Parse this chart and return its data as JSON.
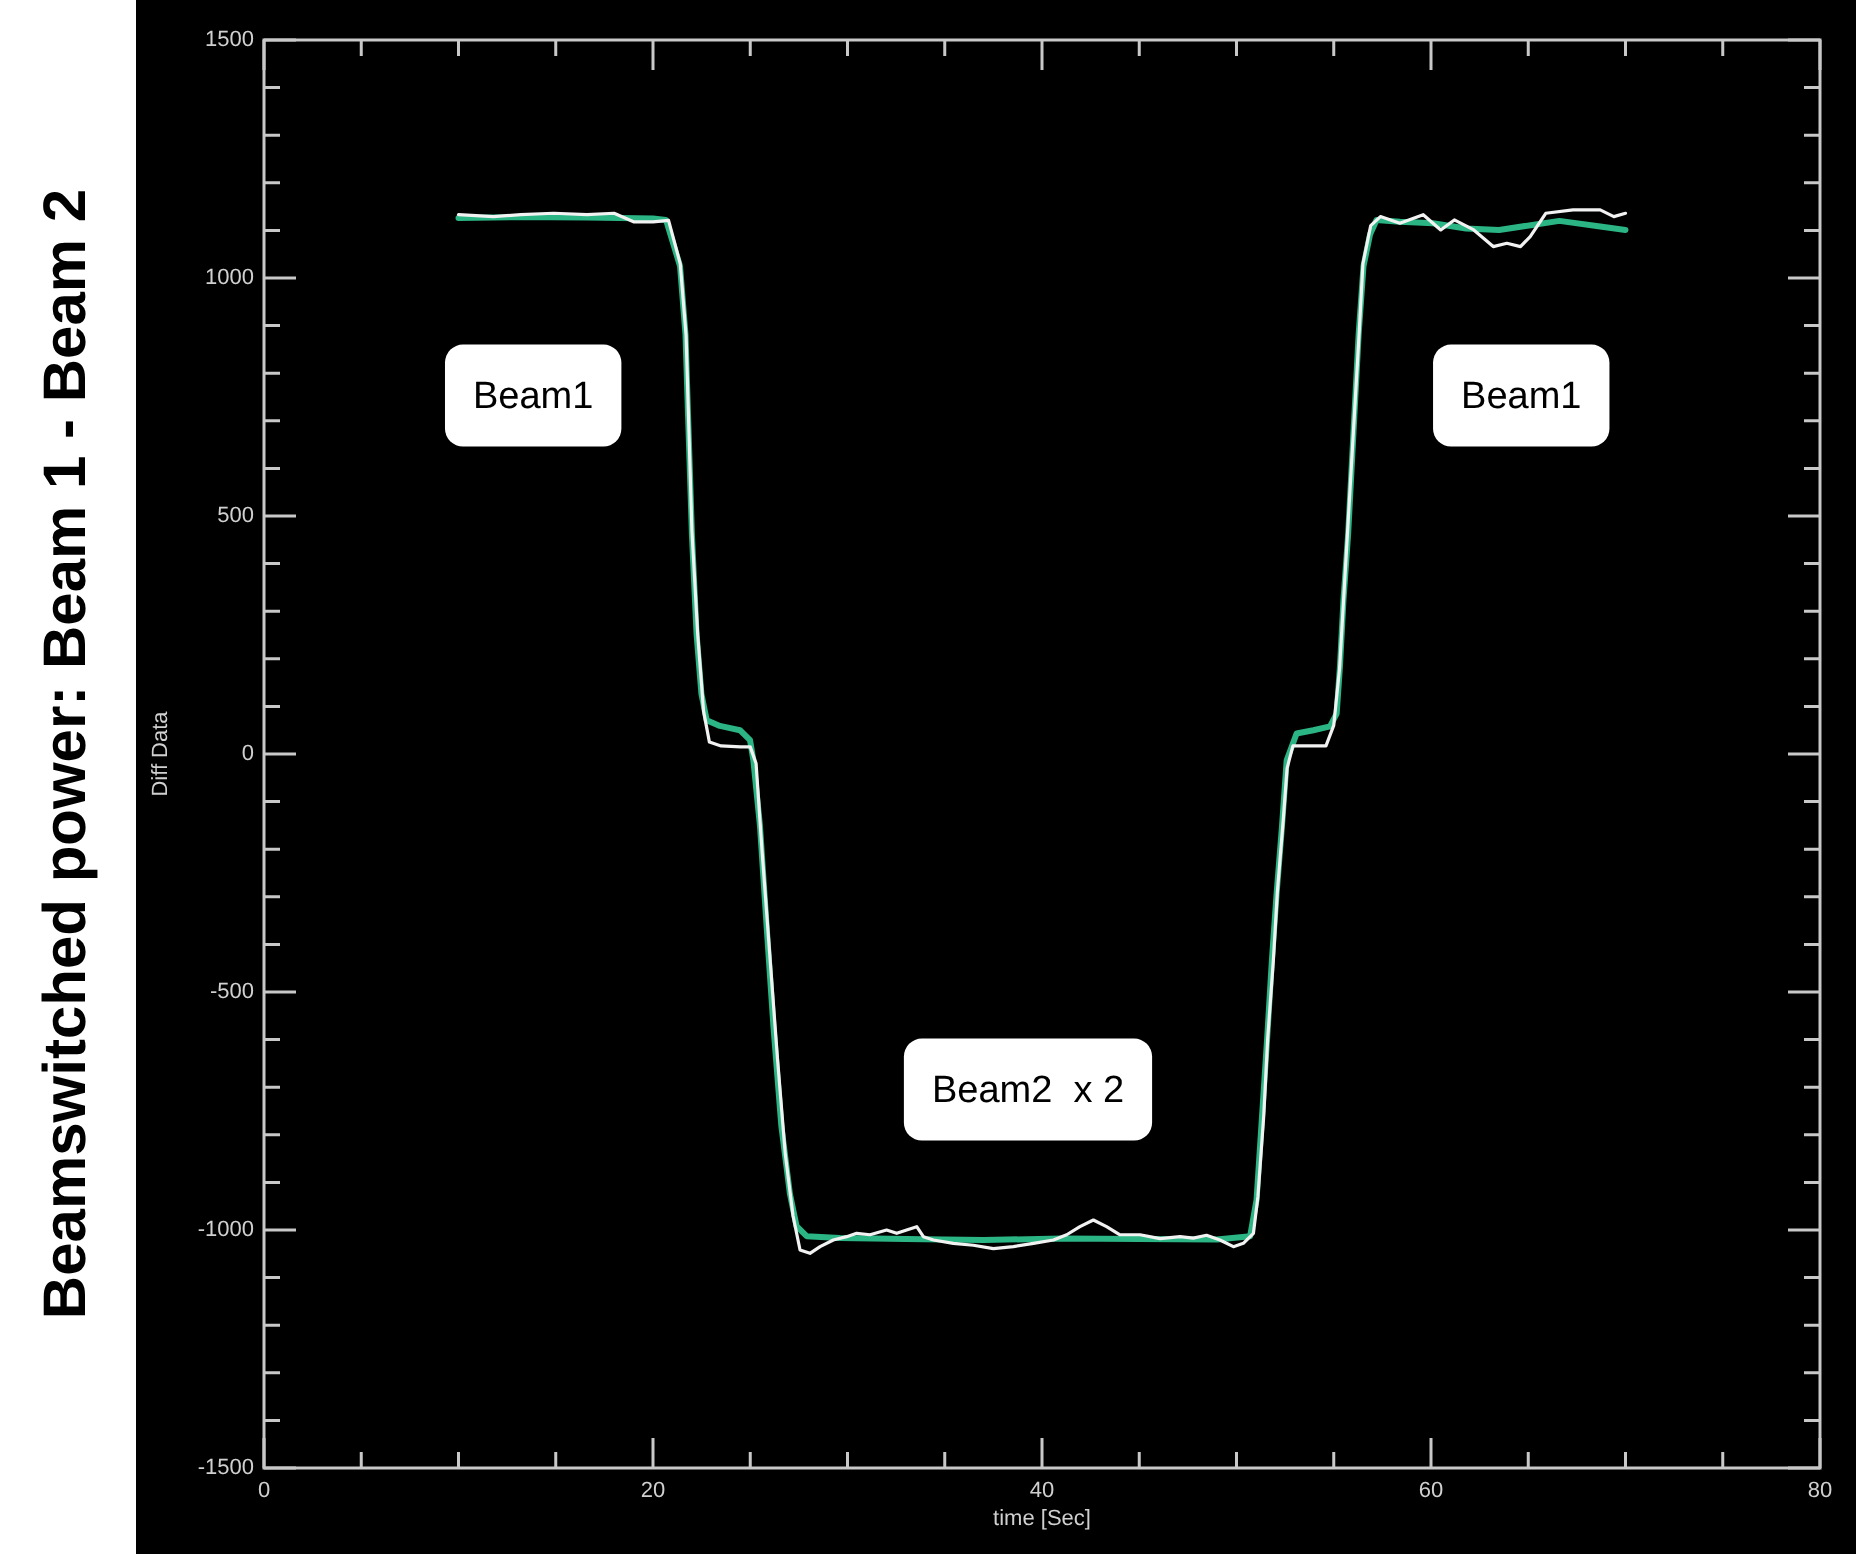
{
  "chart_data": {
    "type": "line",
    "title": "Beamswitched power: Beam 1 - Beam 2",
    "xlabel": "time [Sec]",
    "ylabel": "Diff Data",
    "series": [
      {
        "color": "#f2f2f2",
        "x": [
          10,
          11.8,
          13.2,
          14.9,
          16.6,
          18.0,
          19.0,
          20.0,
          20.8,
          21.4,
          21.7,
          22.0,
          22.3,
          22.6,
          22.9,
          23.5,
          24.5,
          25.0,
          25.3,
          25.6,
          26.0,
          26.4,
          26.8,
          27.2,
          27.56,
          28.07,
          28.59,
          29.27,
          29.96,
          30.47,
          31.16,
          32.01,
          32.53,
          33.04,
          33.56,
          33.9,
          34.42,
          35.44,
          36.47,
          37.5,
          38.53,
          39.56,
          40.59,
          41.27,
          41.95,
          42.64,
          43.32,
          44.01,
          45.04,
          46.07,
          47.1,
          47.78,
          48.46,
          49.15,
          49.84,
          50.35,
          50.87,
          51.1,
          51.4,
          51.6,
          51.9,
          52.1,
          52.4,
          52.6,
          52.9,
          53.8,
          54.6,
          55.0,
          55.3,
          55.5,
          55.7,
          56.0,
          56.3,
          56.5,
          56.9,
          57.4,
          58.4,
          59.6,
          60.5,
          61.2,
          62.2,
          63.2,
          63.9,
          64.6,
          65.1,
          65.9,
          67.3,
          68.7,
          69.4,
          70
        ],
        "values": [
          1133,
          1129,
          1133,
          1136,
          1133,
          1136,
          1118,
          1118,
          1121,
          1030,
          880,
          470,
          250,
          90,
          25,
          17,
          15,
          15,
          -20,
          -200,
          -420,
          -640,
          -840,
          -970,
          -1042,
          -1049,
          -1035,
          -1021,
          -1014,
          -1007,
          -1010,
          -1000,
          -1007,
          -1000,
          -993,
          -1014,
          -1021,
          -1028,
          -1032,
          -1039,
          -1035,
          -1028,
          -1021,
          -1010,
          -993,
          -979,
          -993,
          -1010,
          -1010,
          -1018,
          -1014,
          -1017,
          -1011,
          -1021,
          -1035,
          -1028,
          -1007,
          -930,
          -760,
          -600,
          -430,
          -290,
          -140,
          -30,
          17,
          17,
          17,
          60,
          180,
          320,
          460,
          670,
          880,
          1030,
          1110,
          1129,
          1115,
          1133,
          1101,
          1122,
          1101,
          1066,
          1073,
          1066,
          1087,
          1136,
          1143,
          1143,
          1129,
          1136
        ]
      },
      {
        "color": "#2bb585",
        "x": [
          10,
          13,
          16.6,
          20,
          20.67,
          21.39,
          21.67,
          21.8,
          22.0,
          22.24,
          22.49,
          22.76,
          23.44,
          24.47,
          24.99,
          25.16,
          25.5,
          25.84,
          26.19,
          26.6,
          27.04,
          27.38,
          27.9,
          29.6,
          33,
          37,
          41,
          45,
          49,
          50.7,
          51.03,
          51.3,
          51.57,
          51.82,
          52.06,
          52.34,
          52.58,
          53.09,
          53.95,
          54.81,
          55.15,
          55.32,
          55.5,
          55.74,
          56.01,
          56.28,
          56.53,
          56.87,
          57.2,
          58.4,
          60.1,
          61.8,
          63.5,
          65.3,
          66.6,
          68.7,
          70
        ],
        "values": [
          1126,
          1128,
          1127,
          1125,
          1122,
          1025,
          882,
          714,
          462,
          252,
          126,
          71,
          59,
          50,
          29,
          -13,
          -151,
          -361,
          -571,
          -782,
          -924,
          -992,
          -1013,
          -1017,
          -1019,
          -1021,
          -1018,
          -1019,
          -1020,
          -1013,
          -937,
          -769,
          -601,
          -433,
          -294,
          -151,
          -13,
          43,
          50,
          58,
          85,
          185,
          324,
          462,
          672,
          882,
          1025,
          1092,
          1122,
          1118,
          1115,
          1104,
          1101,
          1112,
          1120,
          1108,
          1101
        ]
      }
    ],
    "xlim": [
      0,
      80
    ],
    "xticks": [
      0,
      {
        "value": 5,
        "label": null
      },
      {
        "value": 10,
        "label": null
      },
      {
        "value": 15,
        "label": null
      },
      20,
      {
        "value": 25,
        "label": null
      },
      {
        "value": 30,
        "label": null
      },
      {
        "value": 35,
        "label": null
      },
      40,
      {
        "value": 45,
        "label": null
      },
      {
        "value": 50,
        "label": null
      },
      {
        "value": 55,
        "label": null
      },
      60,
      {
        "value": 65,
        "label": null
      },
      {
        "value": 70,
        "label": null
      },
      {
        "value": 75,
        "label": null
      },
      80
    ],
    "ylim": [
      -1500,
      1500
    ],
    "yticks": [
      -1500,
      {
        "value": -1400,
        "label": null
      },
      {
        "value": -1300,
        "label": null
      },
      {
        "value": -1200,
        "label": null
      },
      {
        "value": -1100,
        "label": null
      },
      -1000,
      {
        "value": -900,
        "label": null
      },
      {
        "value": -800,
        "label": null
      },
      {
        "value": -700,
        "label": null
      },
      {
        "value": -600,
        "label": null
      },
      -500,
      {
        "value": -400,
        "label": null
      },
      {
        "value": -300,
        "label": null
      },
      {
        "value": -200,
        "label": null
      },
      {
        "value": -100,
        "label": null
      },
      0,
      {
        "value": 100,
        "label": null
      },
      {
        "value": 200,
        "label": null
      },
      {
        "value": 300,
        "label": null
      },
      {
        "value": 400,
        "label": null
      },
      500,
      {
        "value": 600,
        "label": null
      },
      {
        "value": 700,
        "label": null
      },
      {
        "value": 800,
        "label": null
      },
      {
        "value": 900,
        "label": null
      },
      1000,
      {
        "value": 1100,
        "label": null
      },
      {
        "value": 1200,
        "label": null
      },
      {
        "value": 1300,
        "label": null
      },
      {
        "value": 1400,
        "label": null
      },
      1500
    ],
    "grid": false,
    "legend": false,
    "marker": "none",
    "line_style": "solid",
    "annotations": [
      "Beam1",
      "Beam1",
      "Beam2  x 2"
    ]
  }
}
